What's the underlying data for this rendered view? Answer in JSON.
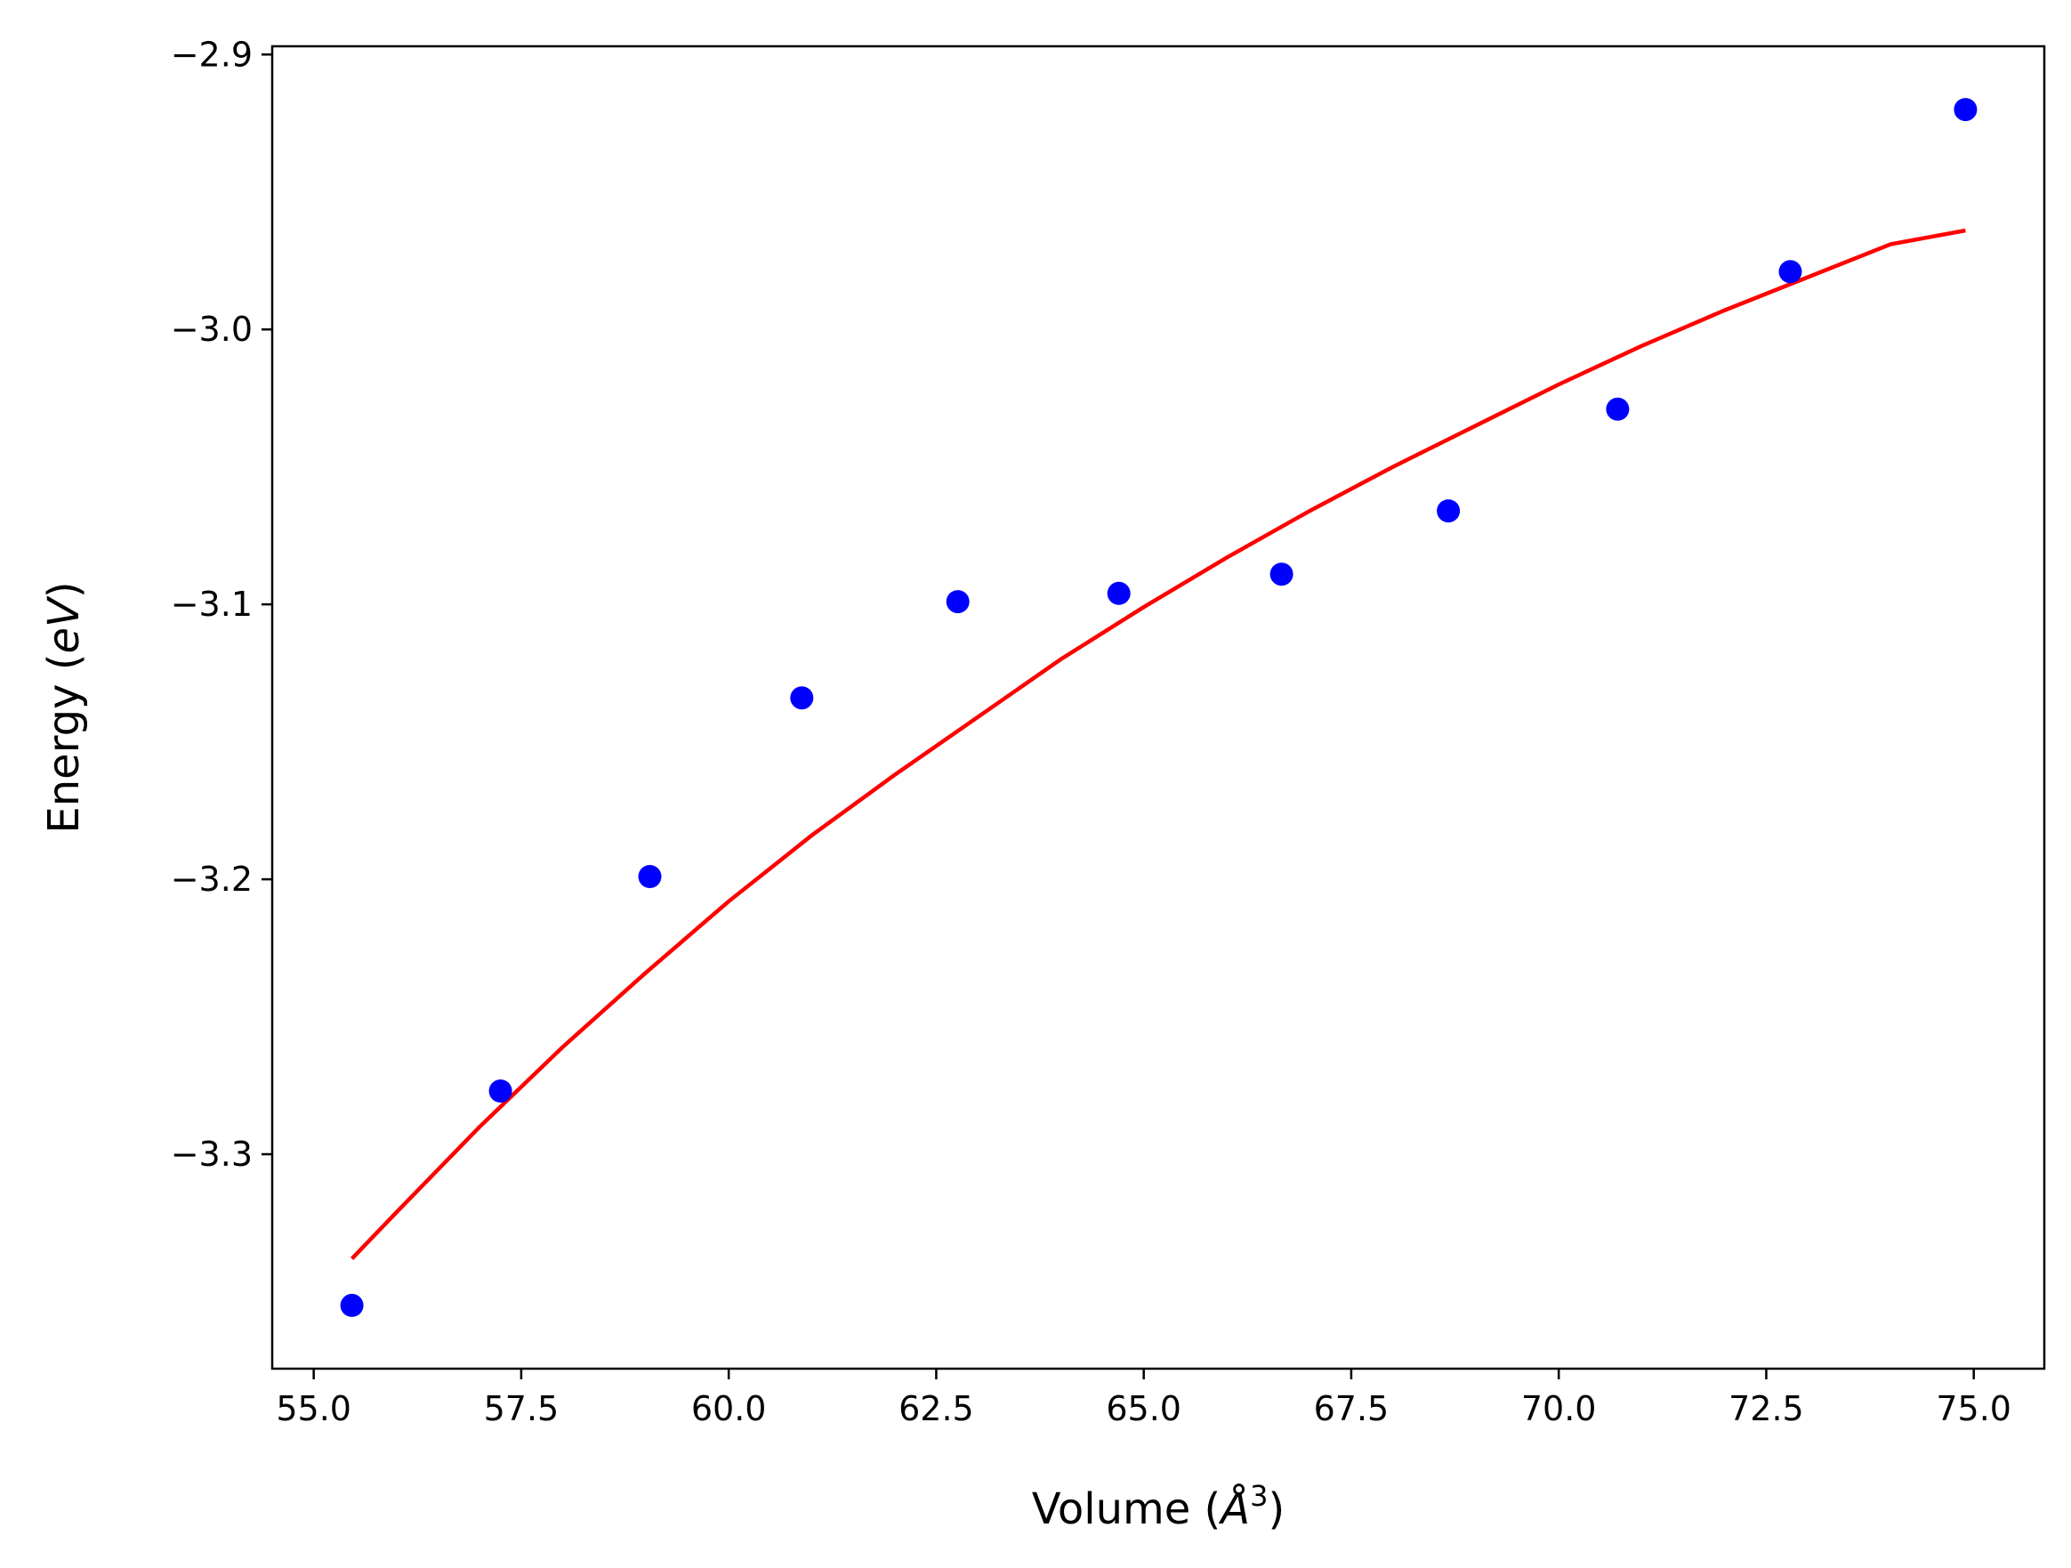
{
  "chart_data": {
    "type": "scatter",
    "xlabel": "Volume (Å³)",
    "ylabel": "Energy (eV)",
    "xlabel_parts": {
      "prefix": "Volume (",
      "symbol": "Å",
      "exponent": "3",
      "suffix": ")"
    },
    "ylabel_parts": {
      "prefix": "Energy (",
      "italic": "eV",
      "suffix": ")"
    },
    "xlim": [
      54.5,
      75.85
    ],
    "ylim": [
      -3.378,
      -2.897
    ],
    "xticks": [
      55.0,
      57.5,
      60.0,
      62.5,
      65.0,
      67.5,
      70.0,
      72.5,
      75.0
    ],
    "xtick_labels": [
      "55.0",
      "57.5",
      "60.0",
      "62.5",
      "65.0",
      "67.5",
      "70.0",
      "72.5",
      "75.0"
    ],
    "yticks": [
      -2.9,
      -3.0,
      -3.1,
      -3.2,
      -3.3
    ],
    "ytick_labels": [
      "−2.9",
      "−3.0",
      "−3.1",
      "−3.2",
      "−3.3"
    ],
    "grid": false,
    "series": [
      {
        "kind": "scatter",
        "color": "#0000ff",
        "points": [
          [
            55.46,
            -3.355
          ],
          [
            57.25,
            -3.277
          ],
          [
            59.05,
            -3.199
          ],
          [
            60.88,
            -3.134
          ],
          [
            62.76,
            -3.099
          ],
          [
            64.7,
            -3.096
          ],
          [
            66.66,
            -3.089
          ],
          [
            68.67,
            -3.066
          ],
          [
            70.71,
            -3.029
          ],
          [
            72.79,
            -2.979
          ],
          [
            74.9,
            -2.92
          ]
        ]
      },
      {
        "kind": "line",
        "color": "#ff0000",
        "points": [
          [
            55.46,
            -3.338
          ],
          [
            56.0,
            -3.321
          ],
          [
            57.0,
            -3.29
          ],
          [
            58.0,
            -3.261
          ],
          [
            59.0,
            -3.234
          ],
          [
            60.0,
            -3.208
          ],
          [
            61.0,
            -3.184
          ],
          [
            62.0,
            -3.162
          ],
          [
            63.0,
            -3.141
          ],
          [
            64.0,
            -3.12
          ],
          [
            65.0,
            -3.101
          ],
          [
            66.0,
            -3.083
          ],
          [
            67.0,
            -3.066
          ],
          [
            68.0,
            -3.05
          ],
          [
            69.0,
            -3.035
          ],
          [
            70.0,
            -3.02
          ],
          [
            71.0,
            -3.006
          ],
          [
            72.0,
            -2.993
          ],
          [
            73.0,
            -2.981
          ],
          [
            74.0,
            -2.969
          ],
          [
            74.9,
            -2.964
          ]
        ]
      }
    ]
  }
}
